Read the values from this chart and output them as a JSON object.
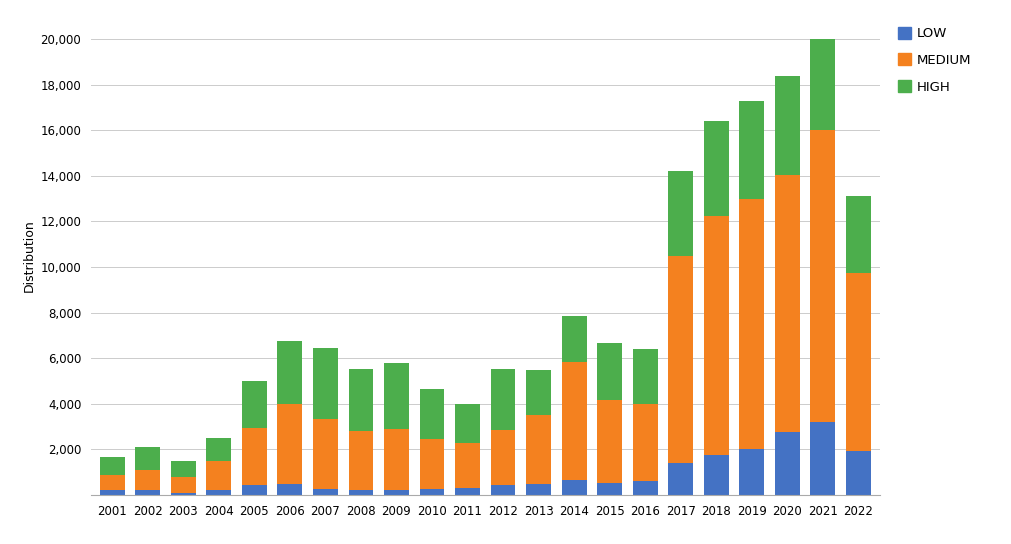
{
  "years": [
    "2001",
    "2002",
    "2003",
    "2004",
    "2005",
    "2006",
    "2007",
    "2008",
    "2009",
    "2010",
    "2011",
    "2012",
    "2013",
    "2014",
    "2015",
    "2016",
    "2017",
    "2018",
    "2019",
    "2020",
    "2021",
    "2022"
  ],
  "low": [
    200,
    200,
    100,
    200,
    450,
    500,
    250,
    200,
    200,
    250,
    300,
    450,
    500,
    650,
    550,
    600,
    1400,
    1750,
    2000,
    2750,
    3200,
    1950
  ],
  "medium": [
    700,
    900,
    700,
    1300,
    2500,
    3500,
    3100,
    2600,
    2700,
    2200,
    2000,
    2400,
    3000,
    5200,
    3600,
    3400,
    9100,
    10500,
    11000,
    11300,
    12800,
    7800
  ],
  "high": [
    750,
    1000,
    700,
    1000,
    2050,
    2750,
    3100,
    2750,
    2900,
    2200,
    1700,
    2700,
    2000,
    2000,
    2500,
    2400,
    3700,
    4150,
    4300,
    4350,
    4000,
    3350
  ],
  "low_color": "#4472c4",
  "medium_color": "#f4811f",
  "high_color": "#4cae4c",
  "ylabel": "Distribution",
  "ylim": [
    0,
    21000
  ],
  "yticks": [
    0,
    2000,
    4000,
    6000,
    8000,
    10000,
    12000,
    14000,
    16000,
    18000,
    20000
  ],
  "ytick_labels": [
    "",
    "2,000",
    "4,000",
    "6,000",
    "8,000",
    "10,000",
    "12,000",
    "14,000",
    "16,000",
    "18,000",
    "20,000"
  ],
  "grid_color": "#cccccc",
  "background_color": "#ffffff",
  "legend_labels": [
    "LOW",
    "MEDIUM",
    "HIGH"
  ],
  "bar_width": 0.7
}
